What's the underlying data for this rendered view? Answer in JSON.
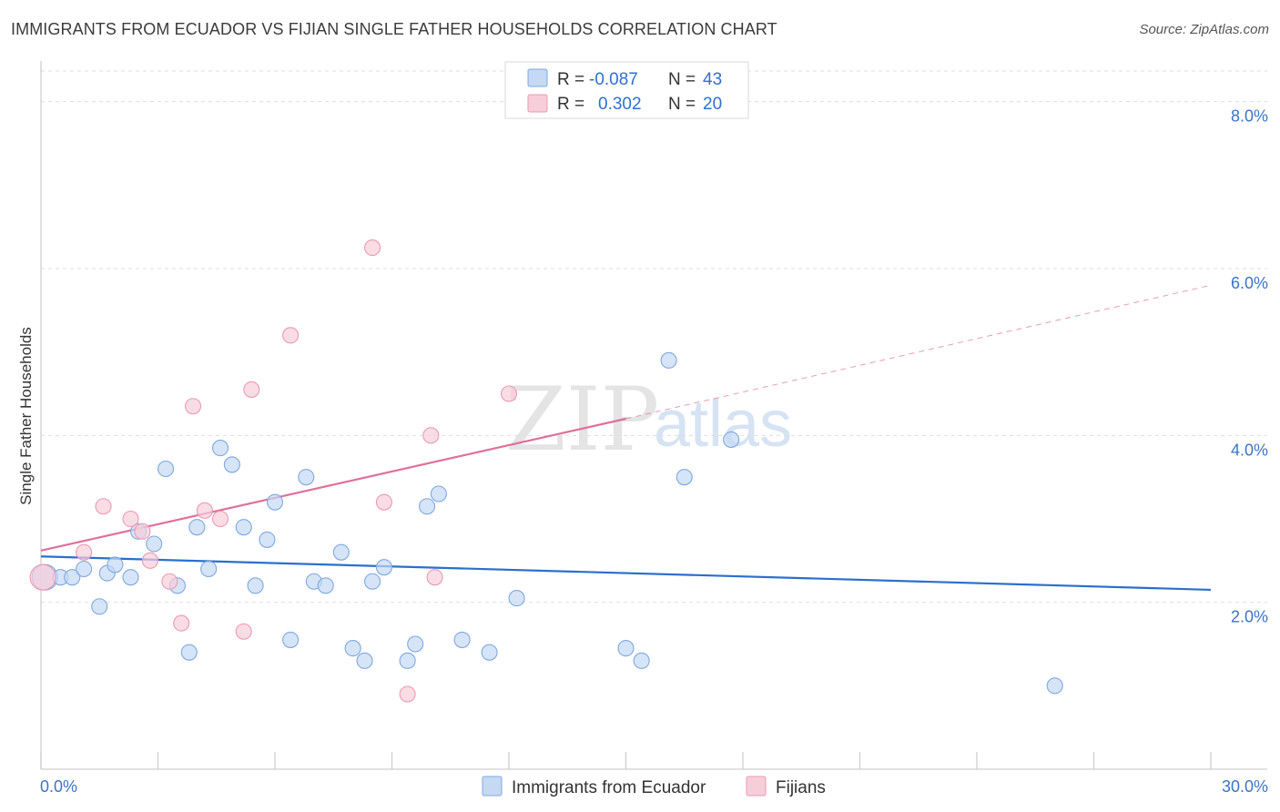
{
  "title": "IMMIGRANTS FROM ECUADOR VS FIJIAN SINGLE FATHER HOUSEHOLDS CORRELATION CHART",
  "source": "Source: ZipAtlas.com",
  "watermark": {
    "zip": "ZIP",
    "atlas": "atlas"
  },
  "colors": {
    "blue_fill": "#c5d9f4",
    "blue_stroke": "#7fa8de",
    "blue_line": "#2a6fce",
    "pink_fill": "#f8cdda",
    "pink_stroke": "#e99ab4",
    "pink_line": "#e0709a",
    "grid": "#dedede",
    "tick_text": "#3a74c8"
  },
  "legend": {
    "rows": [
      {
        "r_label": "R =",
        "r_value": "-0.087",
        "n_label": "N =",
        "n_value": "43",
        "series": "blue"
      },
      {
        "r_label": "R =",
        "r_value": "0.302",
        "n_label": "N =",
        "n_value": "20",
        "series": "pink"
      }
    ]
  },
  "chart_data": {
    "type": "scatter",
    "title": "IMMIGRANTS FROM ECUADOR VS FIJIAN SINGLE FATHER HOUSEHOLDS CORRELATION CHART",
    "xlabel": "",
    "ylabel": "Single Father Households",
    "xlim": [
      0,
      30
    ],
    "ylim": [
      0,
      8.4
    ],
    "x_tick_labels": [
      "0.0%",
      "30.0%"
    ],
    "y_ticks": [
      2,
      4,
      6,
      8
    ],
    "y_tick_labels": [
      "2.0%",
      "4.0%",
      "6.0%",
      "8.0%"
    ],
    "series": [
      {
        "name": "Immigrants from Ecuador",
        "color": "blue",
        "points": [
          [
            0.1,
            2.3
          ],
          [
            0.5,
            2.3
          ],
          [
            0.8,
            2.3
          ],
          [
            1.1,
            2.4
          ],
          [
            1.5,
            1.95
          ],
          [
            1.7,
            2.35
          ],
          [
            1.9,
            2.45
          ],
          [
            2.3,
            2.3
          ],
          [
            2.5,
            2.85
          ],
          [
            2.9,
            2.7
          ],
          [
            3.2,
            3.6
          ],
          [
            3.5,
            2.2
          ],
          [
            3.8,
            1.4
          ],
          [
            4.0,
            2.9
          ],
          [
            4.3,
            2.4
          ],
          [
            4.6,
            3.85
          ],
          [
            4.9,
            3.65
          ],
          [
            5.2,
            2.9
          ],
          [
            5.5,
            2.2
          ],
          [
            5.8,
            2.75
          ],
          [
            6.0,
            3.2
          ],
          [
            6.4,
            1.55
          ],
          [
            6.8,
            3.5
          ],
          [
            7.0,
            2.25
          ],
          [
            7.3,
            2.2
          ],
          [
            7.7,
            2.6
          ],
          [
            8.0,
            1.45
          ],
          [
            8.3,
            1.3
          ],
          [
            8.5,
            2.25
          ],
          [
            8.8,
            2.42
          ],
          [
            9.4,
            1.3
          ],
          [
            9.6,
            1.5
          ],
          [
            9.9,
            3.15
          ],
          [
            10.2,
            3.3
          ],
          [
            10.8,
            1.55
          ],
          [
            11.5,
            1.4
          ],
          [
            12.2,
            2.05
          ],
          [
            15.0,
            1.45
          ],
          [
            15.4,
            1.3
          ],
          [
            16.1,
            4.9
          ],
          [
            16.5,
            3.5
          ],
          [
            17.7,
            3.95
          ],
          [
            26.0,
            1.0
          ]
        ],
        "trend": {
          "x": [
            0,
            30
          ],
          "y": [
            2.55,
            2.15
          ],
          "style": "solid"
        }
      },
      {
        "name": "Fijians",
        "color": "pink",
        "points": [
          [
            0.05,
            2.3
          ],
          [
            1.1,
            2.6
          ],
          [
            1.6,
            3.15
          ],
          [
            2.3,
            3.0
          ],
          [
            2.6,
            2.85
          ],
          [
            2.8,
            2.5
          ],
          [
            3.3,
            2.25
          ],
          [
            3.6,
            1.75
          ],
          [
            3.9,
            4.35
          ],
          [
            4.2,
            3.1
          ],
          [
            4.6,
            3.0
          ],
          [
            5.2,
            1.65
          ],
          [
            5.4,
            4.55
          ],
          [
            6.4,
            5.2
          ],
          [
            8.5,
            6.25
          ],
          [
            8.8,
            3.2
          ],
          [
            9.4,
            0.9
          ],
          [
            10.0,
            4.0
          ],
          [
            10.1,
            2.3
          ],
          [
            12.0,
            4.5
          ]
        ],
        "trend": {
          "x": [
            0,
            15,
            30
          ],
          "y": [
            2.62,
            4.2,
            5.8
          ],
          "style": "solid-then-dashed"
        }
      }
    ],
    "legend_entries": [
      "Immigrants from Ecuador",
      "Fijians"
    ]
  }
}
